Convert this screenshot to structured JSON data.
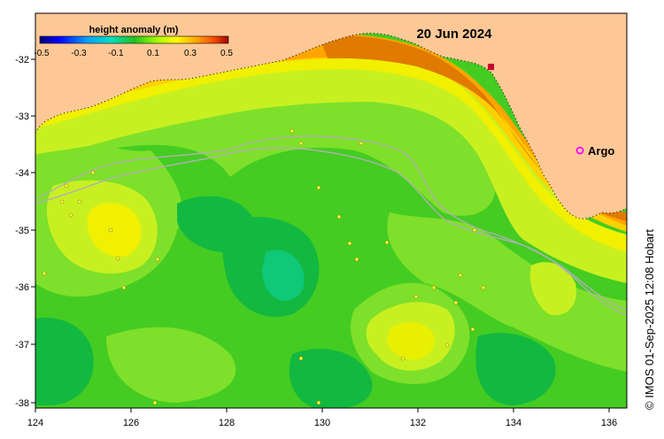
{
  "map": {
    "date": "20 Jun 2024",
    "credit": "© IMOS 01-Sep-2025 12:08 Hobart",
    "legend_argo": "Argo",
    "x_ticks": [
      "124",
      "126",
      "128",
      "130",
      "132",
      "134",
      "136"
    ],
    "y_ticks": [
      "-32",
      "-33",
      "-34",
      "-35",
      "-36",
      "-37",
      "-38"
    ],
    "land_color": "#fdc896",
    "argo_color": "#ff00ff",
    "track_color": "#b0b0b0"
  },
  "colorbar": {
    "title": "height anomaly (m)",
    "ticks": [
      "-0.5",
      "-0.3",
      "-0.1",
      "0.1",
      "0.3",
      "0.5"
    ],
    "min": -0.5,
    "max": 0.5
  }
}
